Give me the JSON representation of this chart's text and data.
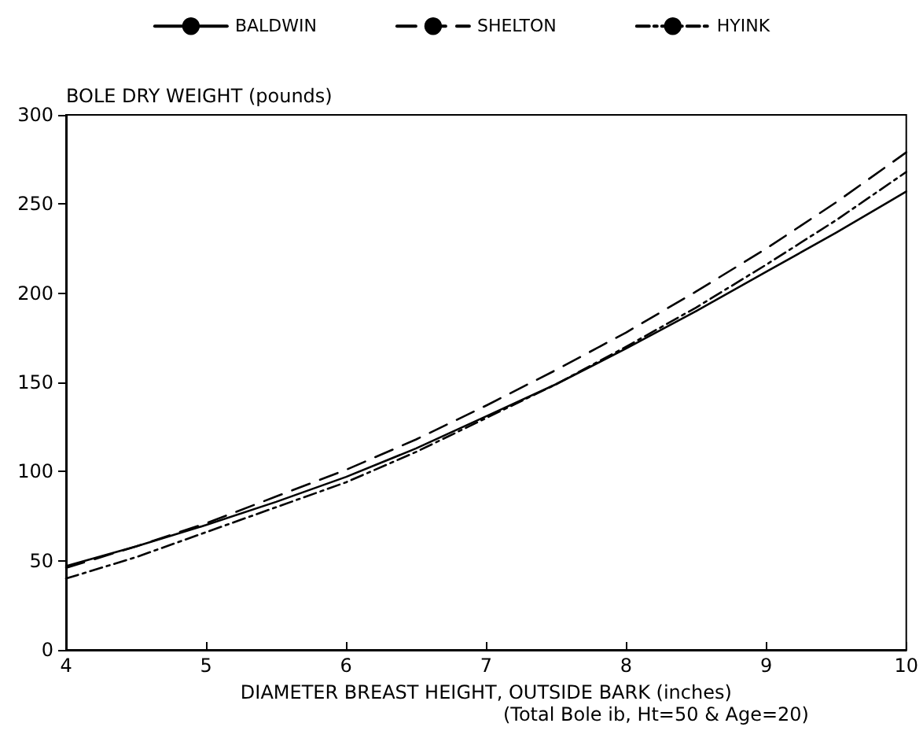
{
  "chart_data": {
    "type": "line",
    "xlabel": "DIAMETER BREAST HEIGHT, OUTSIDE BARK (inches)",
    "ylabel": "BOLE DRY WEIGHT (pounds)",
    "annotations": [
      "(Total Bole ib, Ht=50 & Age=20)"
    ],
    "x": [
      4,
      4.5,
      5,
      5.5,
      6,
      6.5,
      7,
      7.5,
      8,
      8.5,
      9,
      9.5,
      10
    ],
    "series": [
      {
        "name": "BALDWIN",
        "color": "#000000",
        "line_style": "solid",
        "values": [
          47,
          58,
          70,
          83,
          97,
          113,
          131,
          149,
          169,
          190,
          212,
          234,
          257
        ]
      },
      {
        "name": "SHELTON",
        "color": "#000000",
        "line_style": "dashed",
        "values": [
          46,
          58,
          71,
          86,
          101,
          118,
          137,
          157,
          178,
          201,
          225,
          251,
          279
        ]
      },
      {
        "name": "HYINK",
        "color": "#000000",
        "line_style": "dotted",
        "values": [
          40,
          52,
          66,
          80,
          94,
          111,
          130,
          149,
          170,
          192,
          216,
          241,
          268
        ]
      }
    ],
    "xlim": [
      4,
      10
    ],
    "xticks": [
      4,
      5,
      6,
      7,
      8,
      9,
      10
    ],
    "ylim": [
      0,
      300
    ],
    "yticks": [
      0,
      50,
      100,
      150,
      200,
      250,
      300
    ],
    "grid": false,
    "legend": "top",
    "marker": "none"
  }
}
